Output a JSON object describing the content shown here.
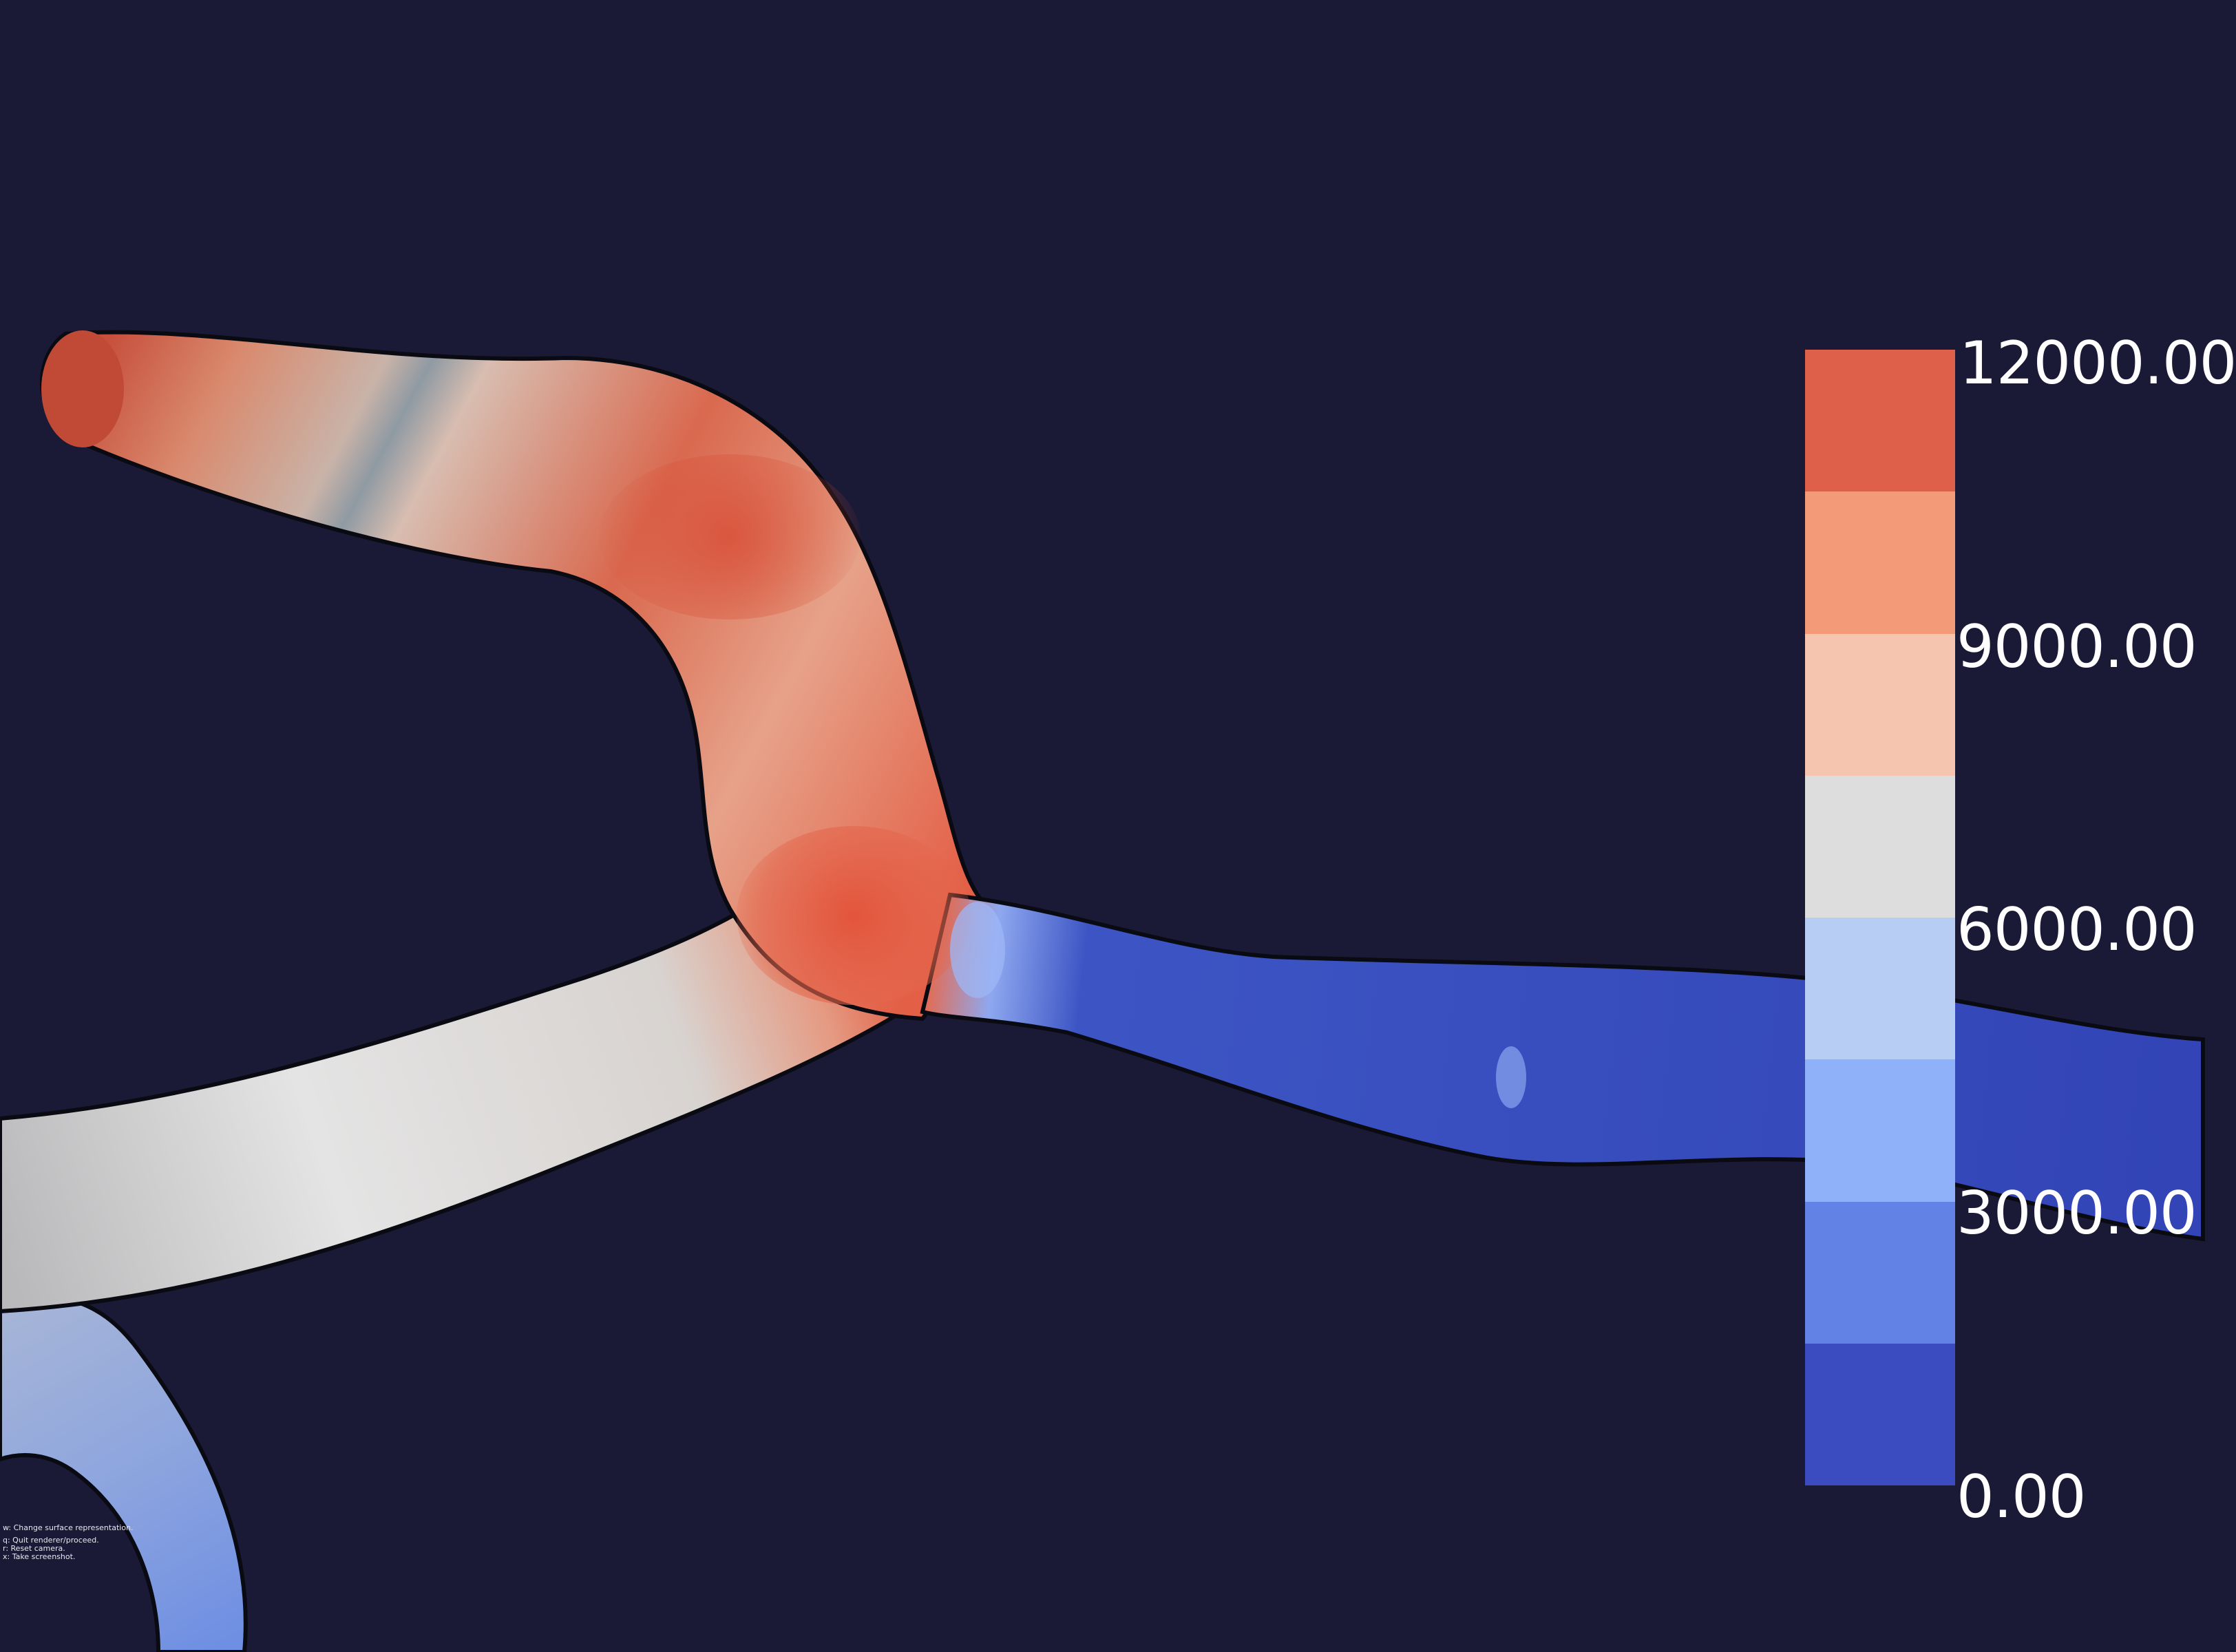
{
  "colorbar": {
    "labels": [
      "12000.00",
      "9000.00",
      "6000.00",
      "3000.00",
      "0.00"
    ],
    "band_colors": [
      "#de604b",
      "#f39a79",
      "#f5c5b0",
      "#dddddd",
      "#b8cdf4",
      "#8eb1fa",
      "#6382e6",
      "#3a4cc0"
    ]
  },
  "help": {
    "line_w": "w: Change surface representation.",
    "line_q": "q: Quit renderer/proceed.",
    "line_r": "r: Reset camera.",
    "line_x": "x: Take screenshot."
  },
  "colors": {
    "background": "#1b1a36",
    "high": "#de604b",
    "mid": "#dddddd",
    "low": "#3a4cc0"
  }
}
